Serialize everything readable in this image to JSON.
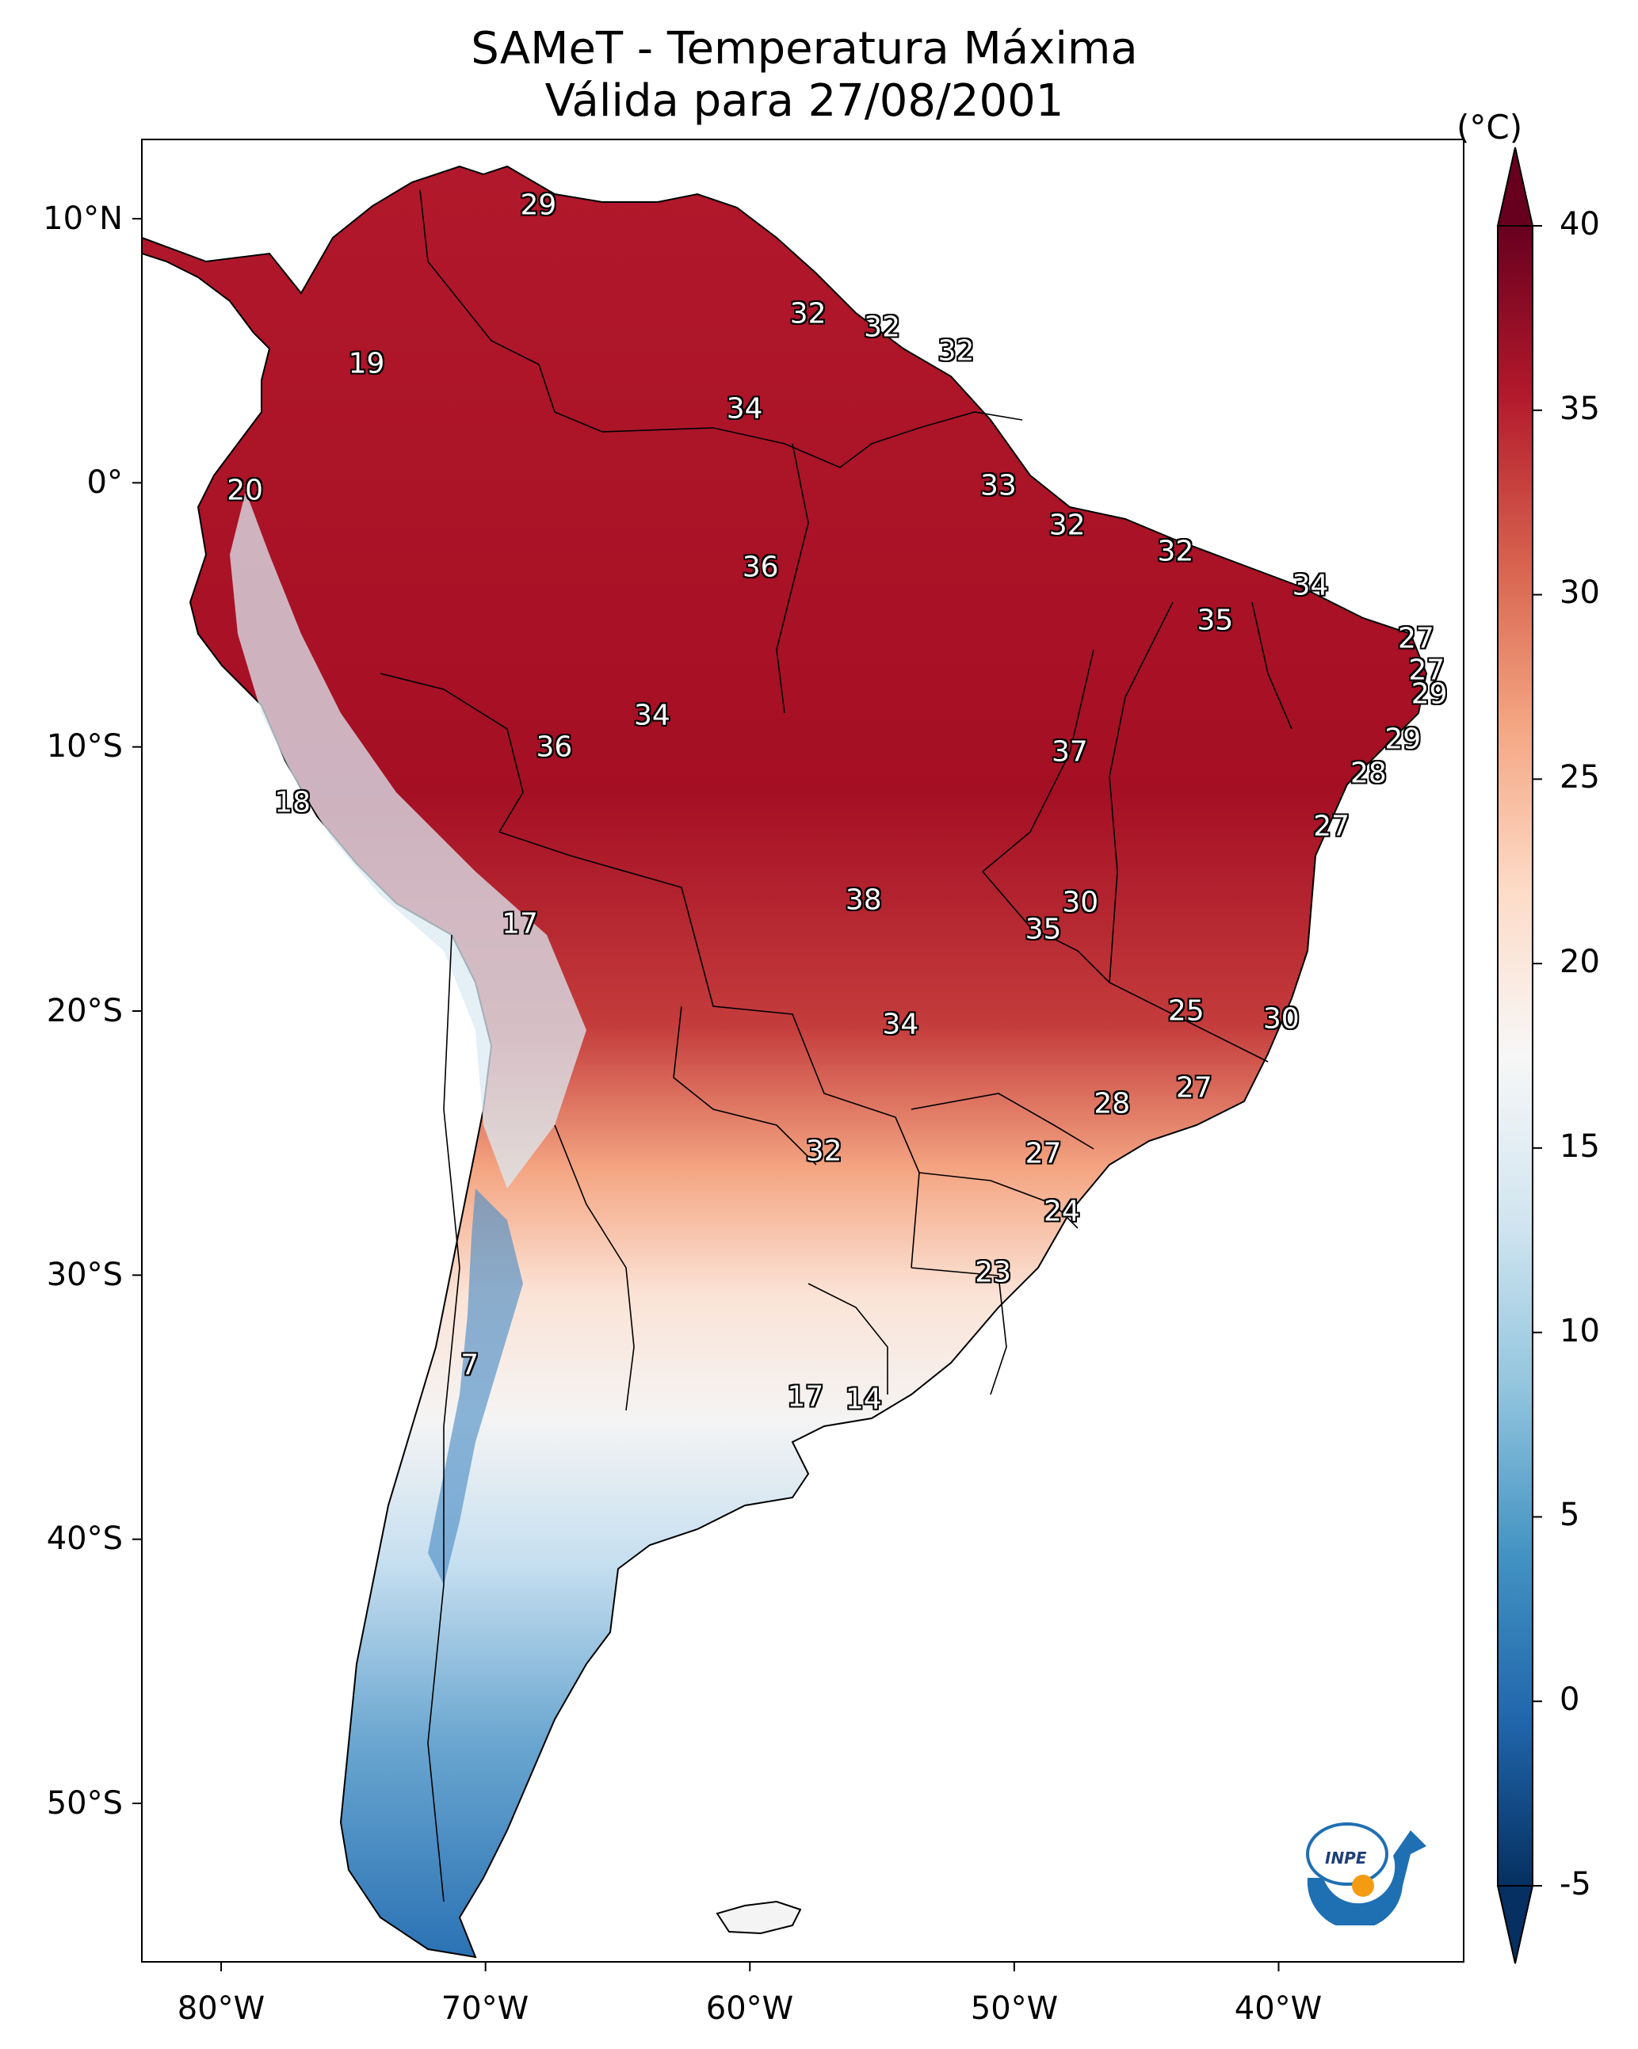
{
  "title": {
    "line1": "SAMeT - Temperatura Máxima",
    "line2": "Válida para 27/08/2001"
  },
  "map": {
    "projection": "PlateCarree",
    "lon_range": [
      -83,
      -33
    ],
    "lat_range": [
      -56,
      13
    ],
    "lat_ticks": [
      "10°N",
      "0°",
      "10°S",
      "20°S",
      "30°S",
      "40°S",
      "50°S"
    ],
    "lon_ticks": [
      "80°W",
      "70°W",
      "60°W",
      "50°W",
      "40°W"
    ]
  },
  "colorbar": {
    "unit": "(°C)",
    "colormap": "RdBu_r",
    "ticks": [
      "-5",
      "0",
      "5",
      "10",
      "15",
      "20",
      "25",
      "30",
      "35",
      "40"
    ],
    "range": [
      -5,
      40
    ],
    "extend": "both",
    "colors_low_to_high": [
      "#053061",
      "#2166ac",
      "#4393c3",
      "#92c5de",
      "#d1e5f0",
      "#f7f7f7",
      "#fddbc7",
      "#f4a582",
      "#d6604d",
      "#b2182b",
      "#67001f"
    ]
  },
  "point_labels": [
    {
      "text": "29",
      "lon": -68.0,
      "lat": 10.5
    },
    {
      "text": "32",
      "lon": -57.8,
      "lat": 6.4
    },
    {
      "text": "32",
      "lon": -55.0,
      "lat": 5.9
    },
    {
      "text": "32",
      "lon": -52.2,
      "lat": 5.0
    },
    {
      "text": "19",
      "lon": -74.5,
      "lat": 4.5
    },
    {
      "text": "34",
      "lon": -60.2,
      "lat": 2.8
    },
    {
      "text": "20",
      "lon": -79.1,
      "lat": -0.3
    },
    {
      "text": "33",
      "lon": -50.6,
      "lat": -0.1
    },
    {
      "text": "32",
      "lon": -48.0,
      "lat": -1.6
    },
    {
      "text": "32",
      "lon": -43.9,
      "lat": -2.6
    },
    {
      "text": "34",
      "lon": -38.8,
      "lat": -3.9
    },
    {
      "text": "36",
      "lon": -59.6,
      "lat": -3.2
    },
    {
      "text": "35",
      "lon": -42.4,
      "lat": -5.2
    },
    {
      "text": "27",
      "lon": -34.8,
      "lat": -5.9
    },
    {
      "text": "27",
      "lon": -34.4,
      "lat": -7.1
    },
    {
      "text": "29",
      "lon": -34.3,
      "lat": -8.0
    },
    {
      "text": "34",
      "lon": -63.7,
      "lat": -8.8
    },
    {
      "text": "29",
      "lon": -35.3,
      "lat": -9.7
    },
    {
      "text": "36",
      "lon": -67.4,
      "lat": -10.0
    },
    {
      "text": "37",
      "lon": -47.9,
      "lat": -10.2
    },
    {
      "text": "28",
      "lon": -36.6,
      "lat": -11.0
    },
    {
      "text": "18",
      "lon": -77.3,
      "lat": -12.1
    },
    {
      "text": "27",
      "lon": -38.0,
      "lat": -13.0
    },
    {
      "text": "38",
      "lon": -55.7,
      "lat": -15.8
    },
    {
      "text": "30",
      "lon": -47.5,
      "lat": -15.9
    },
    {
      "text": "35",
      "lon": -48.9,
      "lat": -16.9
    },
    {
      "text": "17",
      "lon": -68.7,
      "lat": -16.7
    },
    {
      "text": "25",
      "lon": -43.5,
      "lat": -20.0
    },
    {
      "text": "30",
      "lon": -39.9,
      "lat": -20.3
    },
    {
      "text": "34",
      "lon": -54.3,
      "lat": -20.5
    },
    {
      "text": "27",
      "lon": -43.2,
      "lat": -22.9
    },
    {
      "text": "28",
      "lon": -46.3,
      "lat": -23.5
    },
    {
      "text": "32",
      "lon": -57.2,
      "lat": -25.3
    },
    {
      "text": "27",
      "lon": -48.9,
      "lat": -25.4
    },
    {
      "text": "24",
      "lon": -48.2,
      "lat": -27.6
    },
    {
      "text": "23",
      "lon": -50.8,
      "lat": -29.9
    },
    {
      "text": "7",
      "lon": -70.6,
      "lat": -33.4
    },
    {
      "text": "17",
      "lon": -57.9,
      "lat": -34.6
    },
    {
      "text": "14",
      "lon": -55.7,
      "lat": -34.7
    }
  ],
  "logo": {
    "text": "INPE"
  }
}
